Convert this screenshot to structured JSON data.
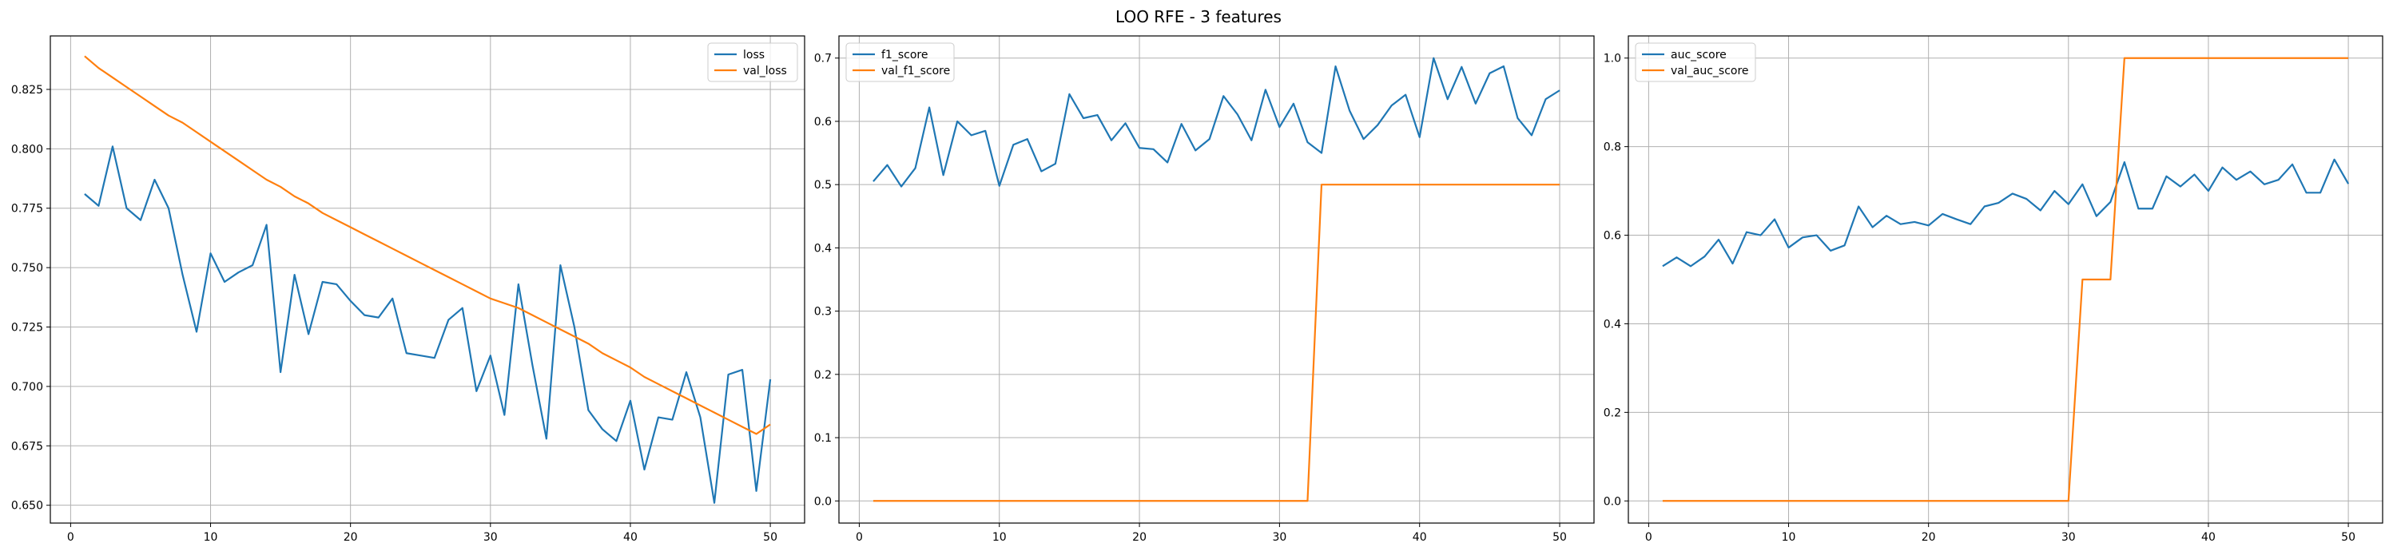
{
  "figure": {
    "suptitle": "LOO RFE - 3 features"
  },
  "colors": {
    "train": "#1f77b4",
    "val": "#ff7f0e",
    "grid": "#b0b0b0",
    "axes": "#000000"
  },
  "chart_data": [
    {
      "type": "line",
      "title": "",
      "xlabel": "",
      "ylabel": "",
      "xlim": [
        -1.45,
        52.45
      ],
      "ylim": [
        0.6425,
        0.8475
      ],
      "xticks": [
        0,
        10,
        20,
        30,
        40,
        50
      ],
      "yticks": [
        0.65,
        0.675,
        0.7,
        0.725,
        0.75,
        0.775,
        0.8,
        0.825
      ],
      "ytick_labels": [
        "0.650",
        "0.675",
        "0.700",
        "0.725",
        "0.750",
        "0.775",
        "0.800",
        "0.825"
      ],
      "grid": true,
      "legend": "upper right",
      "series": [
        {
          "name": "loss",
          "color": "#1f77b4",
          "x": [
            1,
            2,
            3,
            4,
            5,
            6,
            7,
            8,
            9,
            10,
            11,
            12,
            13,
            14,
            15,
            16,
            17,
            18,
            19,
            20,
            21,
            22,
            23,
            24,
            25,
            26,
            27,
            28,
            29,
            30,
            31,
            32,
            33,
            34,
            35,
            36,
            37,
            38,
            39,
            40,
            41,
            42,
            43,
            44,
            45,
            46,
            47,
            48,
            49,
            50
          ],
          "y": [
            0.781,
            0.776,
            0.801,
            0.775,
            0.77,
            0.787,
            0.775,
            0.747,
            0.723,
            0.756,
            0.744,
            0.748,
            0.751,
            0.768,
            0.706,
            0.747,
            0.722,
            0.744,
            0.743,
            0.736,
            0.73,
            0.729,
            0.737,
            0.714,
            0.713,
            0.712,
            0.728,
            0.733,
            0.698,
            0.713,
            0.688,
            0.743,
            0.709,
            0.678,
            0.751,
            0.725,
            0.69,
            0.682,
            0.677,
            0.694,
            0.665,
            0.687,
            0.686,
            0.706,
            0.687,
            0.651,
            0.705,
            0.707,
            0.656,
            0.703
          ]
        },
        {
          "name": "val_loss",
          "color": "#ff7f0e",
          "x": [
            1,
            2,
            3,
            4,
            5,
            6,
            7,
            8,
            9,
            10,
            11,
            12,
            13,
            14,
            15,
            16,
            17,
            18,
            19,
            20,
            21,
            22,
            23,
            24,
            25,
            26,
            27,
            28,
            29,
            30,
            31,
            32,
            33,
            34,
            35,
            36,
            37,
            38,
            39,
            40,
            41,
            42,
            43,
            44,
            45,
            46,
            47,
            48,
            49,
            50
          ],
          "y": [
            0.839,
            0.834,
            0.83,
            0.826,
            0.822,
            0.818,
            0.814,
            0.811,
            0.807,
            0.803,
            0.799,
            0.795,
            0.791,
            0.787,
            0.784,
            0.78,
            0.777,
            0.773,
            0.77,
            0.767,
            0.764,
            0.761,
            0.758,
            0.755,
            0.752,
            0.749,
            0.746,
            0.743,
            0.74,
            0.737,
            0.735,
            0.733,
            0.73,
            0.727,
            0.724,
            0.721,
            0.718,
            0.714,
            0.711,
            0.708,
            0.704,
            0.701,
            0.698,
            0.695,
            0.692,
            0.689,
            0.686,
            0.683,
            0.68,
            0.684
          ]
        }
      ]
    },
    {
      "type": "line",
      "title": "",
      "xlabel": "",
      "ylabel": "",
      "xlim": [
        -1.45,
        52.45
      ],
      "ylim": [
        -0.035,
        0.735
      ],
      "xticks": [
        0,
        10,
        20,
        30,
        40,
        50
      ],
      "yticks": [
        0.0,
        0.1,
        0.2,
        0.3,
        0.4,
        0.5,
        0.6,
        0.7
      ],
      "ytick_labels": [
        "0.0",
        "0.1",
        "0.2",
        "0.3",
        "0.4",
        "0.5",
        "0.6",
        "0.7"
      ],
      "grid": true,
      "legend": "upper left",
      "series": [
        {
          "name": "f1_score",
          "color": "#1f77b4",
          "x": [
            1,
            2,
            3,
            4,
            5,
            6,
            7,
            8,
            9,
            10,
            11,
            12,
            13,
            14,
            15,
            16,
            17,
            18,
            19,
            20,
            21,
            22,
            23,
            24,
            25,
            26,
            27,
            28,
            29,
            30,
            31,
            32,
            33,
            34,
            35,
            36,
            37,
            38,
            39,
            40,
            41,
            42,
            43,
            44,
            45,
            46,
            47,
            48,
            49,
            50
          ],
          "y": [
            0.505,
            0.531,
            0.497,
            0.526,
            0.622,
            0.515,
            0.6,
            0.578,
            0.585,
            0.498,
            0.563,
            0.572,
            0.521,
            0.533,
            0.643,
            0.605,
            0.61,
            0.57,
            0.597,
            0.558,
            0.556,
            0.535,
            0.596,
            0.554,
            0.572,
            0.64,
            0.611,
            0.57,
            0.65,
            0.591,
            0.628,
            0.567,
            0.55,
            0.687,
            0.617,
            0.572,
            0.594,
            0.625,
            0.642,
            0.575,
            0.7,
            0.635,
            0.686,
            0.628,
            0.676,
            0.687,
            0.605,
            0.578,
            0.635,
            0.649
          ]
        },
        {
          "name": "val_f1_score",
          "color": "#ff7f0e",
          "x": [
            1,
            2,
            3,
            4,
            5,
            6,
            7,
            8,
            9,
            10,
            11,
            12,
            13,
            14,
            15,
            16,
            17,
            18,
            19,
            20,
            21,
            22,
            23,
            24,
            25,
            26,
            27,
            28,
            29,
            30,
            31,
            32,
            33,
            34,
            35,
            36,
            37,
            38,
            39,
            40,
            41,
            42,
            43,
            44,
            45,
            46,
            47,
            48,
            49,
            50
          ],
          "y": [
            0,
            0,
            0,
            0,
            0,
            0,
            0,
            0,
            0,
            0,
            0,
            0,
            0,
            0,
            0,
            0,
            0,
            0,
            0,
            0,
            0,
            0,
            0,
            0,
            0,
            0,
            0,
            0,
            0,
            0,
            0,
            0,
            0.5,
            0.5,
            0.5,
            0.5,
            0.5,
            0.5,
            0.5,
            0.5,
            0.5,
            0.5,
            0.5,
            0.5,
            0.5,
            0.5,
            0.5,
            0.5,
            0.5,
            0.5
          ]
        }
      ]
    },
    {
      "type": "line",
      "title": "",
      "xlabel": "",
      "ylabel": "",
      "xlim": [
        -1.45,
        52.45
      ],
      "ylim": [
        -0.05,
        1.05
      ],
      "xticks": [
        0,
        10,
        20,
        30,
        40,
        50
      ],
      "yticks": [
        0.0,
        0.2,
        0.4,
        0.6,
        0.8,
        1.0
      ],
      "ytick_labels": [
        "0.0",
        "0.2",
        "0.4",
        "0.6",
        "0.8",
        "1.0"
      ],
      "grid": true,
      "legend": "upper left",
      "series": [
        {
          "name": "auc_score",
          "color": "#1f77b4",
          "x": [
            1,
            2,
            3,
            4,
            5,
            6,
            7,
            8,
            9,
            10,
            11,
            12,
            13,
            14,
            15,
            16,
            17,
            18,
            19,
            20,
            21,
            22,
            23,
            24,
            25,
            26,
            27,
            28,
            29,
            30,
            31,
            32,
            33,
            34,
            35,
            36,
            37,
            38,
            39,
            40,
            41,
            42,
            43,
            44,
            45,
            46,
            47,
            48,
            49,
            50
          ],
          "y": [
            0.53,
            0.55,
            0.53,
            0.552,
            0.59,
            0.536,
            0.607,
            0.6,
            0.636,
            0.572,
            0.595,
            0.6,
            0.565,
            0.577,
            0.665,
            0.618,
            0.644,
            0.625,
            0.63,
            0.622,
            0.648,
            0.636,
            0.625,
            0.665,
            0.673,
            0.694,
            0.682,
            0.656,
            0.7,
            0.67,
            0.715,
            0.643,
            0.675,
            0.765,
            0.66,
            0.66,
            0.733,
            0.71,
            0.737,
            0.7,
            0.753,
            0.725,
            0.744,
            0.715,
            0.725,
            0.76,
            0.696,
            0.696,
            0.771,
            0.716
          ]
        },
        {
          "name": "val_auc_score",
          "color": "#ff7f0e",
          "x": [
            1,
            2,
            3,
            4,
            5,
            6,
            7,
            8,
            9,
            10,
            11,
            12,
            13,
            14,
            15,
            16,
            17,
            18,
            19,
            20,
            21,
            22,
            23,
            24,
            25,
            26,
            27,
            28,
            29,
            30,
            31,
            32,
            33,
            34,
            35,
            36,
            37,
            38,
            39,
            40,
            41,
            42,
            43,
            44,
            45,
            46,
            47,
            48,
            49,
            50
          ],
          "y": [
            0,
            0,
            0,
            0,
            0,
            0,
            0,
            0,
            0,
            0,
            0,
            0,
            0,
            0,
            0,
            0,
            0,
            0,
            0,
            0,
            0,
            0,
            0,
            0,
            0,
            0,
            0,
            0,
            0,
            0,
            0.5,
            0.5,
            0.5,
            1,
            1,
            1,
            1,
            1,
            1,
            1,
            1,
            1,
            1,
            1,
            1,
            1,
            1,
            1,
            1,
            1
          ]
        }
      ]
    }
  ]
}
